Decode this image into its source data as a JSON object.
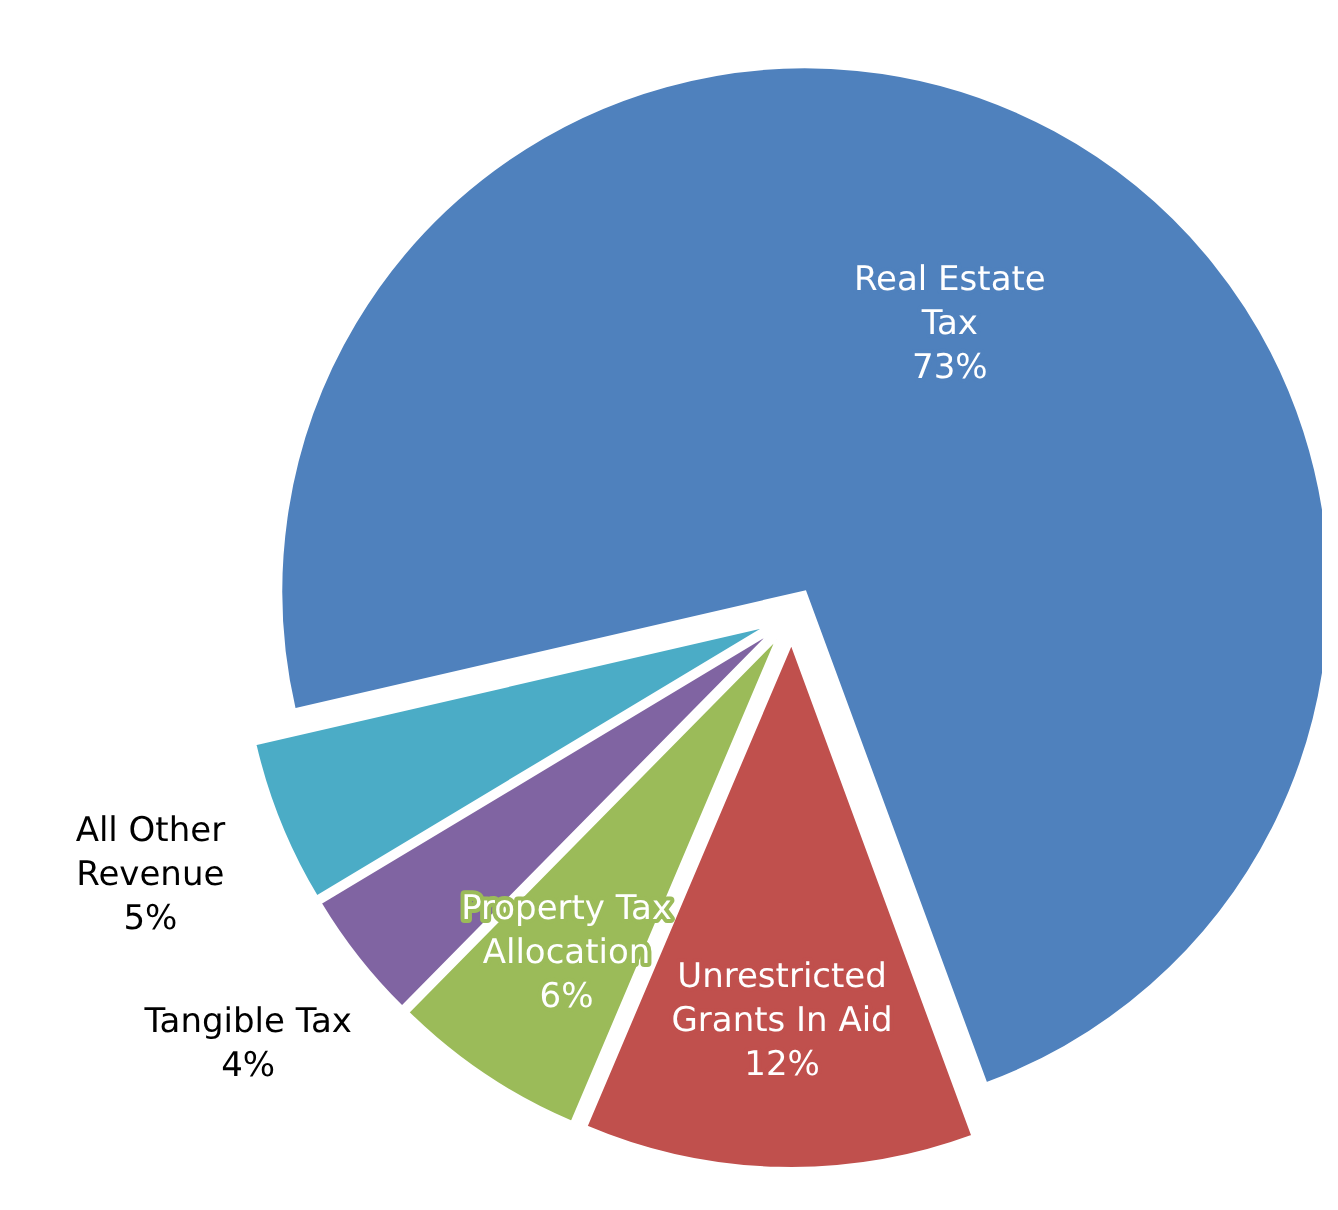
{
  "chart_data": {
    "type": "pie",
    "categories": [
      "Real Estate Tax",
      "Unrestricted Grants In Aid",
      "Property Tax Allocation",
      "Tangible Tax",
      "All Other Revenue"
    ],
    "values": [
      73,
      12,
      6,
      4,
      5
    ],
    "value_labels": [
      "73%",
      "12%",
      "6%",
      "4%",
      "5%"
    ],
    "colors": [
      "#4f81bd",
      "#c0504d",
      "#9bbb59",
      "#8064a2",
      "#4bacc6"
    ],
    "legend": false
  }
}
